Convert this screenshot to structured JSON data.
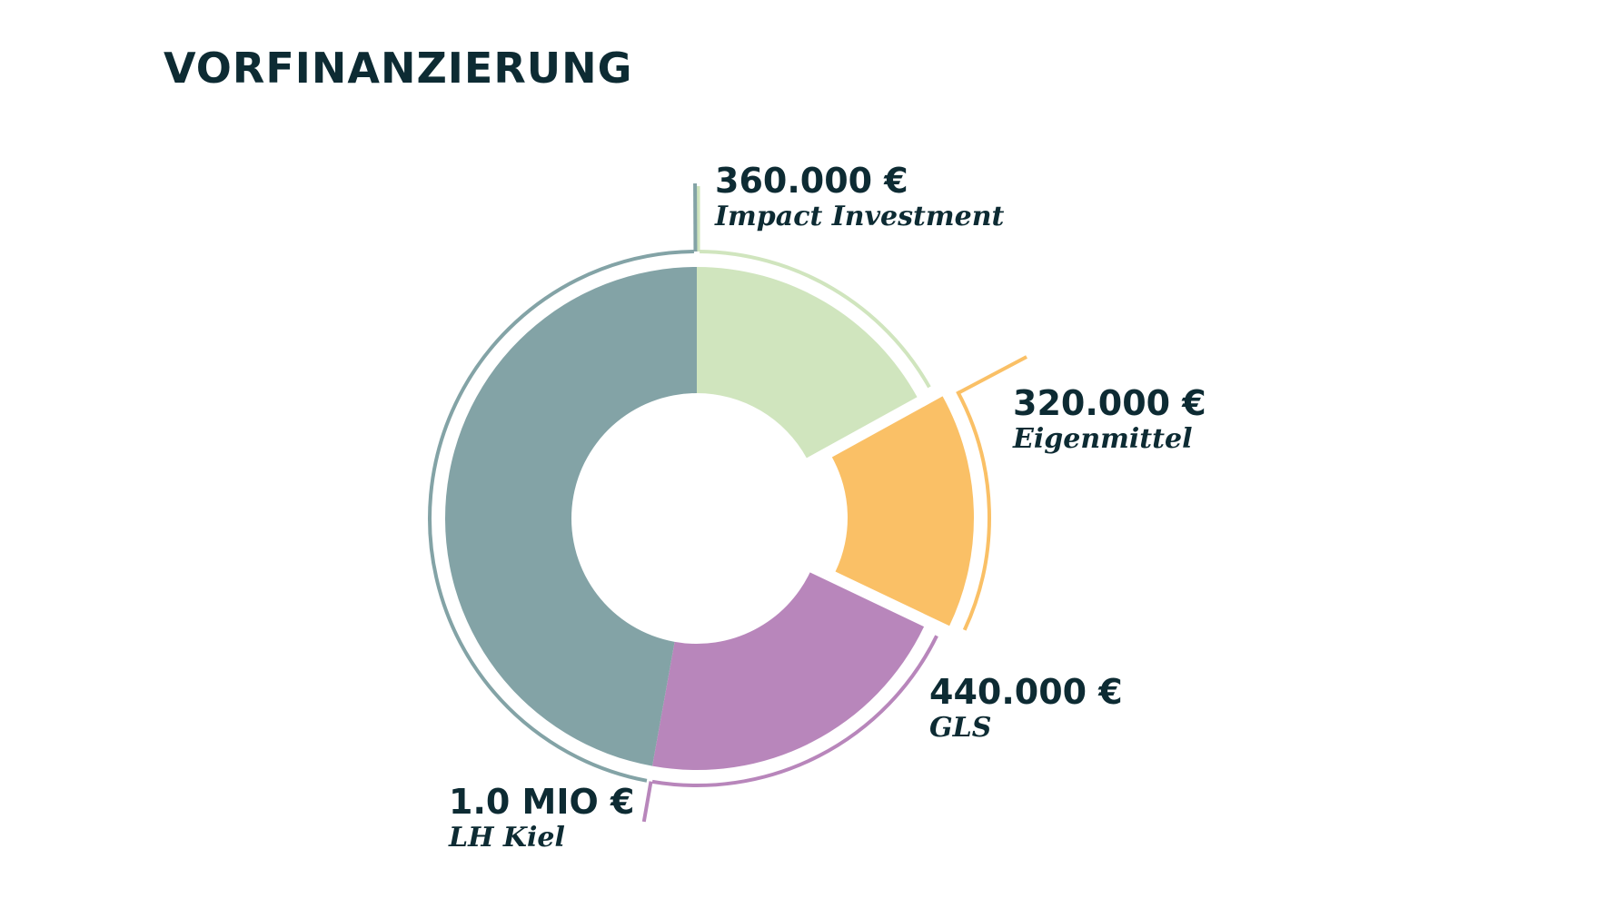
{
  "page": {
    "title": "VORFINANZIERUNG"
  },
  "chart_data": {
    "type": "pie",
    "title": "VORFINANZIERUNG",
    "unit": "€",
    "categories": [
      "Impact Investment",
      "Eigenmittel",
      "GLS",
      "LH Kiel"
    ],
    "values": [
      360000,
      320000,
      440000,
      1000000
    ],
    "value_labels": [
      "360.000 €",
      "320.000 €",
      "440.000 €",
      "1.0 MIO €"
    ],
    "colors": [
      "#d0e5be",
      "#fac066",
      "#b886bb",
      "#83a3a6"
    ],
    "exploded": [
      false,
      true,
      false,
      false
    ],
    "donut": true,
    "legend": "none"
  }
}
